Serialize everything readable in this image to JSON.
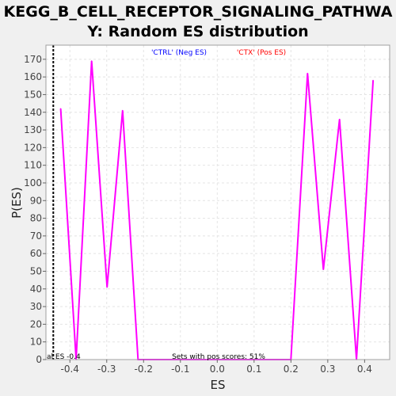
{
  "chart_data": {
    "type": "line",
    "title_line1": "KEGG_B_CELL_RECEPTOR_SIGNALING_PATHWA",
    "title_line2": "Y: Random ES distribution",
    "xlabel": "ES",
    "ylabel": "P(ES)",
    "xlim": [
      -0.465,
      0.468
    ],
    "ylim": [
      0,
      178
    ],
    "xticks": [
      -0.4,
      -0.3,
      -0.2,
      -0.1,
      0.0,
      0.1,
      0.2,
      0.3,
      0.4
    ],
    "xtick_labels": [
      "-0.4",
      "-0.3",
      "-0.2",
      "-0.1",
      "0.0",
      "0.1",
      "0.2",
      "0.3",
      "0.4"
    ],
    "yticks": [
      0,
      10,
      20,
      30,
      40,
      50,
      60,
      70,
      80,
      90,
      100,
      110,
      120,
      130,
      140,
      150,
      160,
      170
    ],
    "ytick_labels": [
      "0",
      "10",
      "20",
      "30",
      "40",
      "50",
      "60",
      "70",
      "80",
      "90",
      "100",
      "110",
      "120",
      "130",
      "140",
      "150",
      "160",
      "170"
    ],
    "grid": true,
    "legend": [
      {
        "label": "'CTRL' (Neg ES)",
        "color": "#0000ff"
      },
      {
        "label": "'CTX' (Pos ES)",
        "color": "#ff0000"
      }
    ],
    "series": [
      {
        "color": "#ff00ff",
        "x": [
          -0.425,
          -0.383,
          -0.341,
          -0.299,
          -0.257,
          -0.215,
          -0.195,
          -0.15,
          -0.1,
          -0.05,
          0.0,
          0.05,
          0.1,
          0.15,
          0.2,
          0.245,
          0.288,
          0.332,
          0.378,
          0.423
        ],
        "y": [
          142,
          0,
          169,
          41,
          141,
          0,
          0,
          0,
          0,
          0,
          0,
          0,
          0,
          0,
          0,
          162,
          51,
          136,
          0,
          158
        ]
      }
    ],
    "actual_es_line": {
      "x": -0.445,
      "label": "al ES -0.4"
    },
    "annotation": "Sets with pos scores: 51%"
  }
}
